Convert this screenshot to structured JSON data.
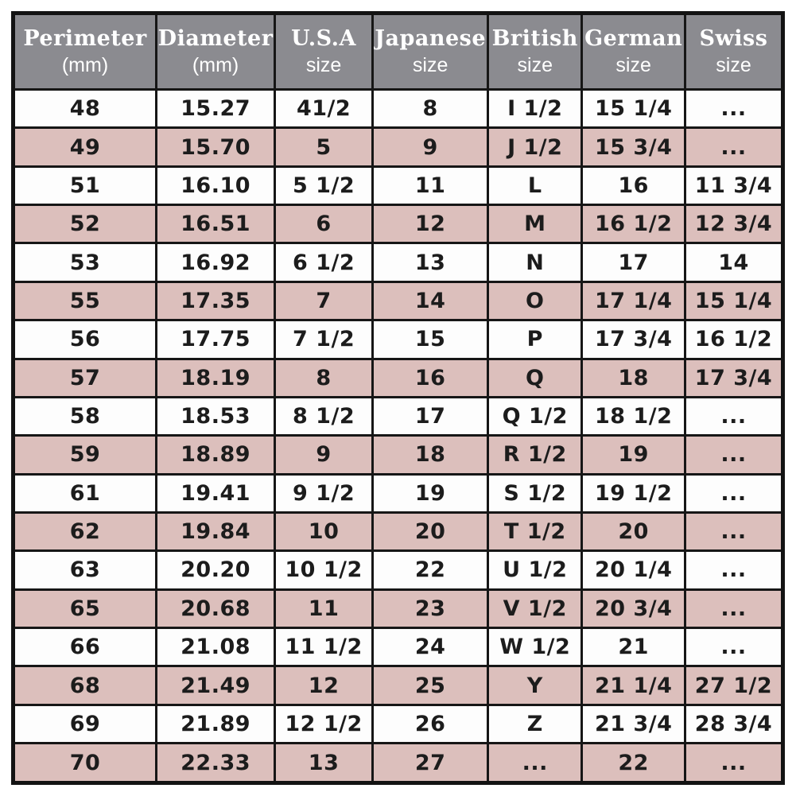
{
  "table": {
    "headers": [
      {
        "title": "Perimeter",
        "subtitle": "(mm)"
      },
      {
        "title": "Diameter",
        "subtitle": "(mm)"
      },
      {
        "title": "U.S.A",
        "subtitle": "size"
      },
      {
        "title": "Japanese",
        "subtitle": "size"
      },
      {
        "title": "British",
        "subtitle": "size"
      },
      {
        "title": "German",
        "subtitle": "size"
      },
      {
        "title": "Swiss",
        "subtitle": "size"
      }
    ]
  },
  "chart_data": {
    "type": "table",
    "columns": [
      "Perimeter (mm)",
      "Diameter (mm)",
      "U.S.A size",
      "Japanese size",
      "British size",
      "German size",
      "Swiss size"
    ],
    "rows": [
      [
        "48",
        "15.27",
        "41/2",
        "8",
        "I 1/2",
        "15 1/4",
        "..."
      ],
      [
        "49",
        "15.70",
        "5",
        "9",
        "J 1/2",
        "15 3/4",
        "..."
      ],
      [
        "51",
        "16.10",
        "5 1/2",
        "11",
        "L",
        "16",
        "11 3/4"
      ],
      [
        "52",
        "16.51",
        "6",
        "12",
        "M",
        "16 1/2",
        "12 3/4"
      ],
      [
        "53",
        "16.92",
        "6 1/2",
        "13",
        "N",
        "17",
        "14"
      ],
      [
        "55",
        "17.35",
        "7",
        "14",
        "O",
        "17 1/4",
        "15 1/4"
      ],
      [
        "56",
        "17.75",
        "7 1/2",
        "15",
        "P",
        "17 3/4",
        "16 1/2"
      ],
      [
        "57",
        "18.19",
        "8",
        "16",
        "Q",
        "18",
        "17 3/4"
      ],
      [
        "58",
        "18.53",
        "8 1/2",
        "17",
        "Q 1/2",
        "18 1/2",
        "..."
      ],
      [
        "59",
        "18.89",
        "9",
        "18",
        "R 1/2",
        "19",
        "..."
      ],
      [
        "61",
        "19.41",
        "9 1/2",
        "19",
        "S 1/2",
        "19 1/2",
        "..."
      ],
      [
        "62",
        "19.84",
        "10",
        "20",
        "T 1/2",
        "20",
        "..."
      ],
      [
        "63",
        "20.20",
        "10 1/2",
        "22",
        "U 1/2",
        "20 1/4",
        "..."
      ],
      [
        "65",
        "20.68",
        "11",
        "23",
        "V 1/2",
        "20 3/4",
        "..."
      ],
      [
        "66",
        "21.08",
        "11 1/2",
        "24",
        "W 1/2",
        "21",
        "..."
      ],
      [
        "68",
        "21.49",
        "12",
        "25",
        "Y",
        "21 1/4",
        "27 1/2"
      ],
      [
        "69",
        "21.89",
        "12 1/2",
        "26",
        "Z",
        "21 3/4",
        "28 3/4"
      ],
      [
        "70",
        "22.33",
        "13",
        "27",
        "...",
        "22",
        "..."
      ]
    ]
  },
  "colors": {
    "header_bg": "#8b8b90",
    "header_text": "#ffffff",
    "row_bg": "#fdfdfd",
    "row_alt_bg": "#dcbfbc",
    "border": "#161616",
    "cell_text": "#1c1c1c"
  }
}
